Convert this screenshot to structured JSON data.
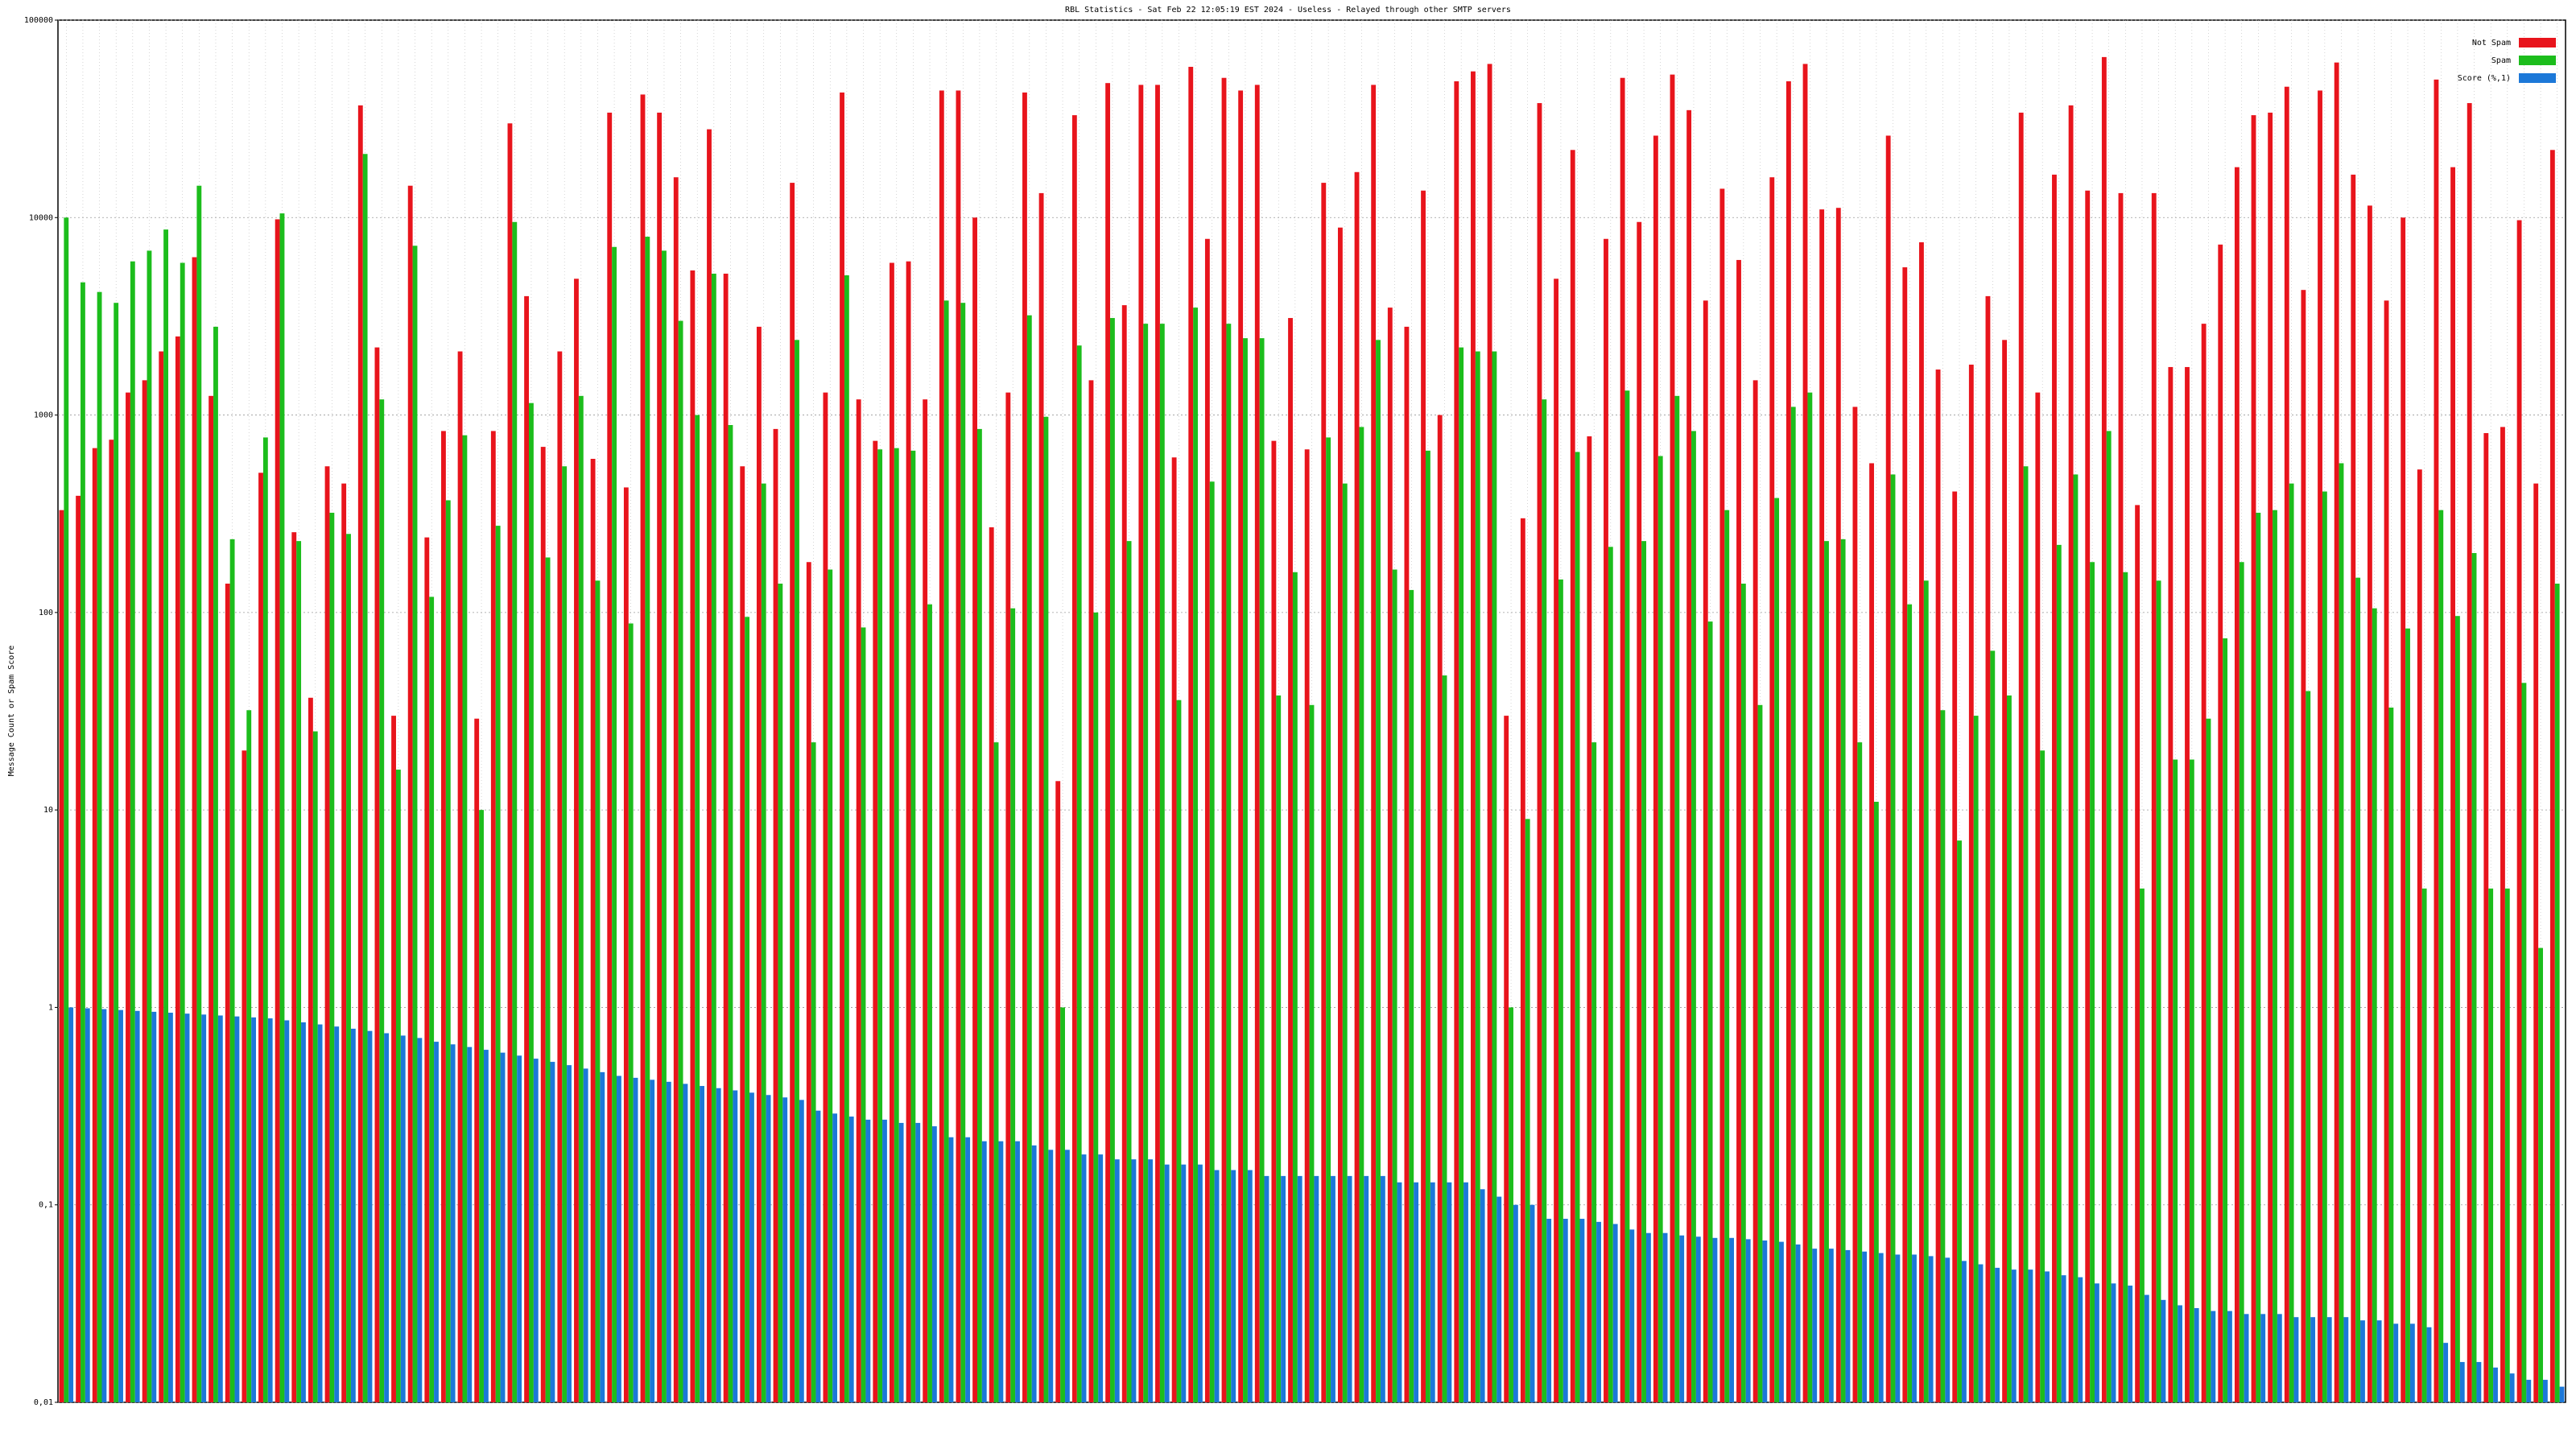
{
  "chart_data": {
    "type": "bar",
    "log_scale": true,
    "grid": true,
    "legend": "top-right",
    "title": "RBL Statistics - Sat Feb 22 12:05:19 EST 2024 - Useless - Relayed through other SMTP servers",
    "y_label": "Message Count or Spam Score",
    "ylim": [
      0.01,
      100000
    ],
    "yticks": [
      {
        "value": 0.01,
        "label": "0,01"
      },
      {
        "value": 0.1,
        "label": "0,1"
      },
      1,
      10,
      100,
      1000,
      10000,
      100000
    ],
    "categories": [
      null,
      null,
      null,
      null,
      null,
      null,
      null,
      null,
      null,
      null,
      null,
      null,
      null,
      null,
      null,
      null,
      null,
      null,
      null,
      null,
      null,
      null,
      null,
      null,
      null,
      null,
      null,
      null,
      null,
      null,
      null,
      null,
      null,
      null,
      null,
      null,
      null,
      null,
      null,
      null,
      null,
      null,
      null,
      null,
      null,
      null,
      null,
      null,
      null,
      null,
      null,
      null,
      null,
      null,
      null,
      null,
      null,
      null,
      null,
      null,
      null,
      null,
      null,
      null,
      null,
      null,
      null,
      null,
      null,
      null,
      null,
      null,
      null,
      null,
      null,
      null,
      null,
      null,
      null,
      null,
      null,
      null,
      null,
      null,
      null,
      null,
      null,
      null,
      null,
      null,
      null,
      null,
      null,
      null,
      null,
      null,
      null,
      null,
      null,
      null,
      null,
      null,
      null,
      null,
      null,
      null,
      null,
      null,
      null,
      null,
      null,
      null,
      null,
      null,
      null,
      null,
      null,
      null,
      null,
      null,
      null,
      null,
      null,
      null,
      null,
      null,
      null,
      null,
      null,
      null,
      null,
      null,
      null,
      null,
      null,
      null,
      null,
      null,
      null,
      null,
      null,
      null,
      null,
      null,
      null,
      null,
      null,
      null,
      null,
      null,
      null
    ],
    "series": [
      {
        "name": "Not Spam",
        "color": "#e8141c",
        "values": [
          330,
          390,
          680,
          750,
          1300,
          1500,
          2100,
          2500,
          6300,
          1250,
          140,
          20,
          510,
          9800,
          255,
          37,
          550,
          450,
          37000,
          2200,
          30,
          14500,
          240,
          830,
          2100,
          29,
          830,
          30000,
          4000,
          690,
          2100,
          4900,
          600,
          34000,
          430,
          42000,
          34000,
          16000,
          5400,
          28000,
          5200,
          550,
          2800,
          850,
          15000,
          180,
          1300,
          43000,
          1200,
          740,
          5900,
          6000,
          1200,
          44000,
          44000,
          10000,
          270,
          1300,
          43000,
          13300,
          14,
          33000,
          1500,
          48000,
          3600,
          47000,
          47000,
          610,
          58000,
          7800,
          51000,
          44000,
          47000,
          740,
          3100,
          670,
          15000,
          8900,
          17000,
          47000,
          3500,
          2800,
          13700,
          1000,
          49000,
          55000,
          60000,
          30,
          300,
          38000,
          4900,
          22000,
          780,
          7800,
          51000,
          9500,
          26000,
          53000,
          35000,
          3800,
          14000,
          6100,
          1500,
          16000,
          49000,
          60000,
          11000,
          11200,
          1100,
          570,
          26000,
          5600,
          7500,
          1700,
          410,
          1800,
          4000,
          2400,
          34000,
          1300,
          16500,
          37000,
          13700,
          65000,
          13300,
          350,
          13300,
          1750,
          1750,
          2900,
          7300,
          18000,
          33000,
          34000,
          46000,
          4300,
          44000,
          61000,
          16500,
          11500,
          3800,
          10000,
          530,
          50000,
          18000,
          38000,
          810,
          870,
          9700,
          450,
          22000
        ]
      },
      {
        "name": "Spam",
        "color": "#1cbd1c",
        "values": [
          10000,
          4700,
          4200,
          3700,
          6000,
          6800,
          8700,
          5900,
          14500,
          2800,
          235,
          32,
          770,
          10500,
          230,
          25,
          320,
          250,
          21000,
          1200,
          16,
          7200,
          120,
          370,
          790,
          10,
          275,
          9500,
          1150,
          190,
          550,
          1250,
          145,
          7100,
          88,
          8000,
          6800,
          3000,
          1000,
          5200,
          890,
          95,
          450,
          140,
          2400,
          22,
          165,
          5100,
          84,
          670,
          680,
          660,
          110,
          3800,
          3700,
          850,
          22,
          105,
          3200,
          980,
          1,
          2250,
          100,
          3100,
          230,
          2900,
          2900,
          36,
          3500,
          460,
          2900,
          2450,
          2450,
          38,
          160,
          34,
          770,
          450,
          870,
          2400,
          165,
          130,
          660,
          48,
          2200,
          2100,
          2100,
          1,
          9,
          1200,
          147,
          650,
          22,
          215,
          1330,
          230,
          620,
          1250,
          830,
          90,
          330,
          140,
          34,
          380,
          1100,
          1300,
          230,
          235,
          22,
          11,
          500,
          110,
          145,
          32,
          7,
          30,
          64,
          38,
          550,
          20,
          220,
          500,
          180,
          830,
          160,
          4,
          145,
          18,
          18,
          29,
          74,
          180,
          320,
          330,
          450,
          40,
          410,
          570,
          150,
          105,
          33,
          83,
          4,
          330,
          96,
          200,
          4,
          4,
          44,
          2,
          140
        ]
      },
      {
        "name": "Score (%,1)",
        "color": "#1c78d8",
        "values": [
          1.0,
          0.99,
          0.98,
          0.97,
          0.96,
          0.95,
          0.94,
          0.93,
          0.92,
          0.91,
          0.9,
          0.89,
          0.88,
          0.86,
          0.84,
          0.82,
          0.8,
          0.78,
          0.76,
          0.74,
          0.72,
          0.7,
          0.67,
          0.65,
          0.63,
          0.61,
          0.59,
          0.57,
          0.55,
          0.53,
          0.51,
          0.49,
          0.47,
          0.45,
          0.44,
          0.43,
          0.42,
          0.41,
          0.4,
          0.39,
          0.38,
          0.37,
          0.36,
          0.35,
          0.34,
          0.3,
          0.29,
          0.28,
          0.27,
          0.27,
          0.26,
          0.26,
          0.25,
          0.22,
          0.22,
          0.21,
          0.21,
          0.21,
          0.2,
          0.19,
          0.19,
          0.18,
          0.18,
          0.17,
          0.17,
          0.17,
          0.16,
          0.16,
          0.16,
          0.15,
          0.15,
          0.15,
          0.14,
          0.14,
          0.14,
          0.14,
          0.14,
          0.14,
          0.14,
          0.14,
          0.13,
          0.13,
          0.13,
          0.13,
          0.13,
          0.12,
          0.11,
          0.1,
          0.1,
          0.085,
          0.085,
          0.085,
          0.082,
          0.08,
          0.075,
          0.072,
          0.072,
          0.07,
          0.069,
          0.068,
          0.068,
          0.067,
          0.066,
          0.065,
          0.063,
          0.06,
          0.06,
          0.059,
          0.058,
          0.057,
          0.056,
          0.056,
          0.055,
          0.054,
          0.052,
          0.05,
          0.048,
          0.047,
          0.047,
          0.046,
          0.044,
          0.043,
          0.04,
          0.04,
          0.039,
          0.035,
          0.033,
          0.031,
          0.03,
          0.029,
          0.029,
          0.028,
          0.028,
          0.028,
          0.027,
          0.027,
          0.027,
          0.027,
          0.026,
          0.026,
          0.025,
          0.025,
          0.024,
          0.02,
          0.016,
          0.016,
          0.015,
          0.014,
          0.013,
          0.013,
          0.012
        ]
      }
    ]
  }
}
